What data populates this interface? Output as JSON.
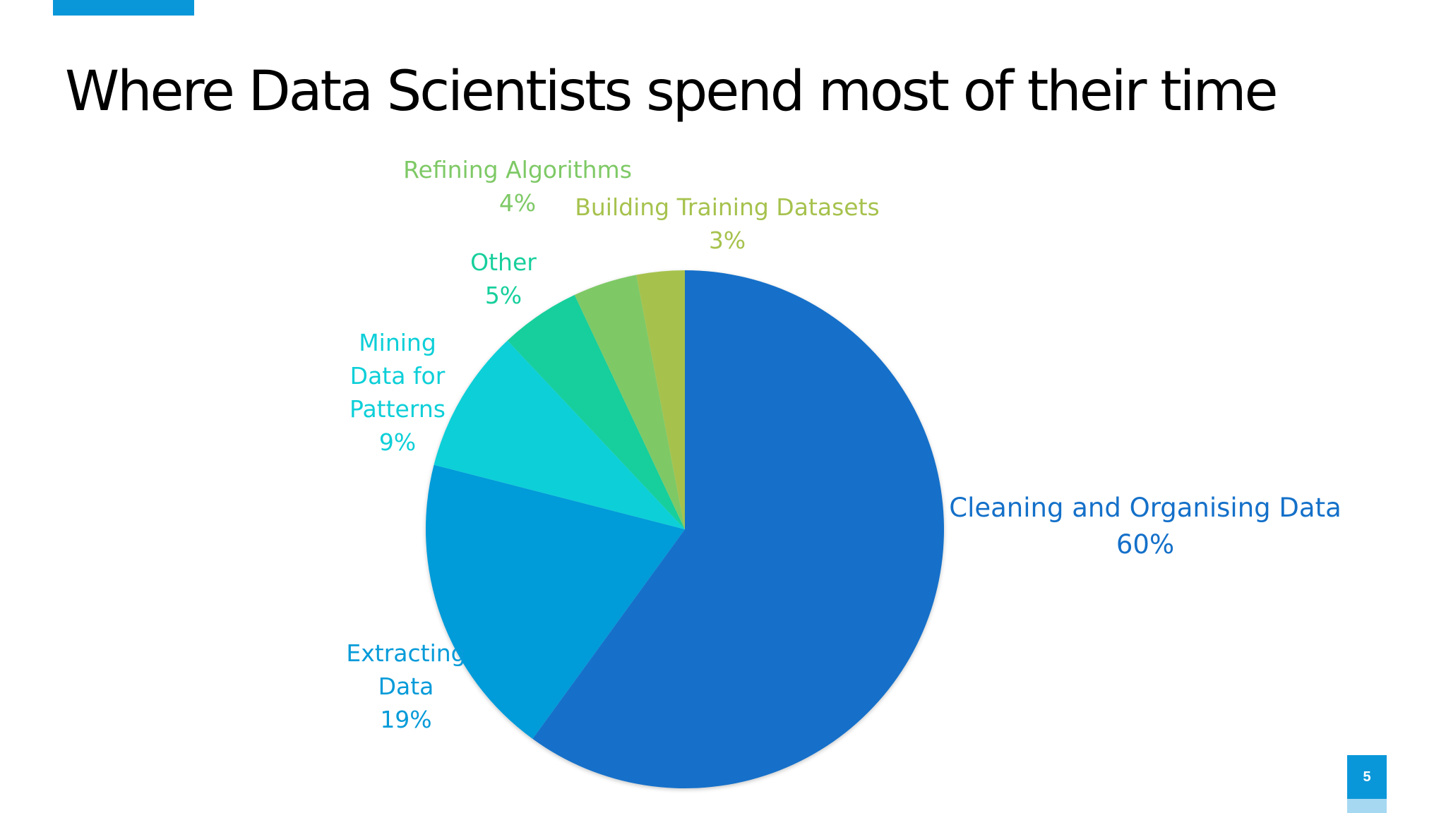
{
  "slide": {
    "title": "Where Data Scientists spend most of their time",
    "page_number": "5",
    "accent_color": "#0a97d9"
  },
  "chart_data": {
    "type": "pie",
    "title": "",
    "start": "12 o'clock",
    "direction": "clockwise",
    "slices": [
      {
        "name": "Cleaning and Organising Data",
        "value": 60,
        "label": "60%",
        "color": "#1470c9"
      },
      {
        "name": "Extracting Data",
        "value": 19,
        "label": "19%",
        "color": "#069bd9"
      },
      {
        "name": "Mining Data for Patterns",
        "value": 9,
        "label": "9%",
        "color": "#0dcfd8"
      },
      {
        "name": "Other",
        "value": 5,
        "label": "5%",
        "color": "#17cf9c"
      },
      {
        "name": "Refining Algorithms",
        "value": 4,
        "label": "4%",
        "color": "#7ec966"
      },
      {
        "name": "Building Training Datasets",
        "value": 3,
        "label": "3%",
        "color": "#a6c24d"
      }
    ]
  }
}
